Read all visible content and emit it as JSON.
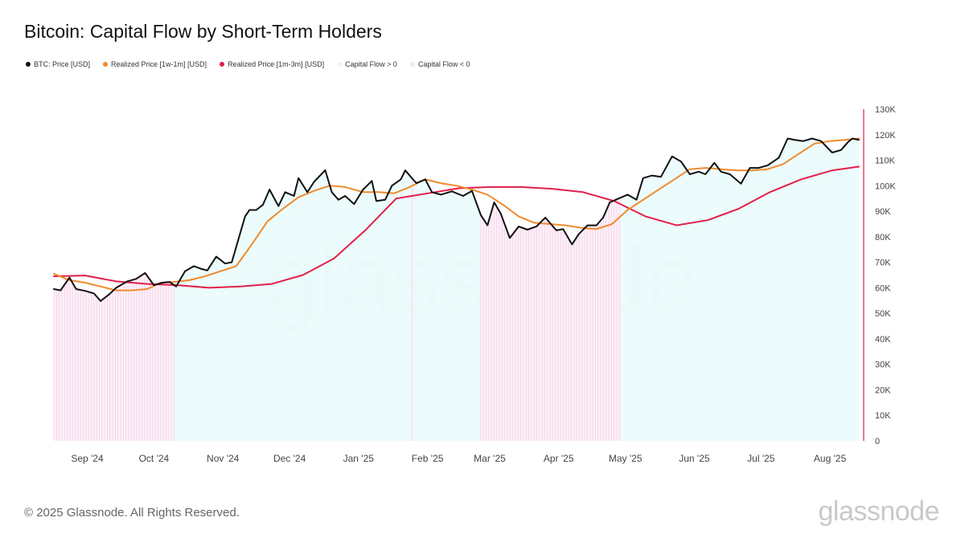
{
  "title": "Bitcoin: Capital Flow by Short-Term Holders",
  "legend": [
    {
      "label": "BTC: Price [USD]",
      "color": "#111111"
    },
    {
      "label": "Realized Price [1w-1m] [USD]",
      "color": "#f08a2c"
    },
    {
      "label": "Realized Price [1m-3m] [USD]",
      "color": "#e0204a"
    },
    {
      "label": "Capital Flow > 0",
      "color": "#eefbfb"
    },
    {
      "label": "Capital Flow < 0",
      "color": "#fbe9f5"
    }
  ],
  "footer": "© 2025 Glassnode. All Rights Reserved.",
  "logo": "glassnode",
  "watermark": "glassnode",
  "chart_data": {
    "type": "line",
    "title": "Bitcoin: Capital Flow by Short-Term Holders",
    "x_start": "2024-08-17",
    "x_end": "2025-08-14",
    "x_tick_labels": [
      "Sep '24",
      "Oct '24",
      "Nov '24",
      "Dec '24",
      "Jan '25",
      "Feb '25",
      "Mar '25",
      "Apr '25",
      "May '25",
      "Jun '25",
      "Jul '25",
      "Aug '25"
    ],
    "x_tick_dates": [
      "2024-09-01",
      "2024-10-01",
      "2024-11-01",
      "2024-12-01",
      "2025-01-01",
      "2025-02-01",
      "2025-03-01",
      "2025-04-01",
      "2025-05-01",
      "2025-06-01",
      "2025-07-01",
      "2025-08-01"
    ],
    "ylim": [
      0,
      130000
    ],
    "y_ticks": [
      0,
      10000,
      20000,
      30000,
      40000,
      50000,
      60000,
      70000,
      80000,
      90000,
      100000,
      110000,
      120000,
      130000
    ],
    "y_tick_labels": [
      "0",
      "10K",
      "20K",
      "30K",
      "40K",
      "50K",
      "60K",
      "70K",
      "80K",
      "90K",
      "100K",
      "110K",
      "120K",
      "130K"
    ],
    "y_axis_position": "right",
    "grid": false,
    "legend_position": "top-left",
    "series": [
      {
        "name": "BTC: Price [USD]",
        "color": "#111111",
        "points": [
          [
            "2024-08-17",
            59500
          ],
          [
            "2024-08-20",
            59000
          ],
          [
            "2024-08-24",
            64000
          ],
          [
            "2024-08-27",
            59500
          ],
          [
            "2024-08-31",
            58800
          ],
          [
            "2024-09-04",
            57800
          ],
          [
            "2024-09-07",
            54800
          ],
          [
            "2024-09-11",
            57500
          ],
          [
            "2024-09-14",
            60000
          ],
          [
            "2024-09-19",
            62500
          ],
          [
            "2024-09-23",
            63500
          ],
          [
            "2024-09-27",
            65800
          ],
          [
            "2024-10-01",
            61000
          ],
          [
            "2024-10-05",
            62000
          ],
          [
            "2024-10-08",
            62300
          ],
          [
            "2024-10-11",
            60500
          ],
          [
            "2024-10-15",
            66500
          ],
          [
            "2024-10-19",
            68500
          ],
          [
            "2024-10-22",
            67500
          ],
          [
            "2024-10-25",
            66800
          ],
          [
            "2024-10-29",
            72200
          ],
          [
            "2024-11-02",
            69500
          ],
          [
            "2024-11-05",
            70000
          ],
          [
            "2024-11-07",
            76000
          ],
          [
            "2024-11-11",
            88000
          ],
          [
            "2024-11-13",
            90500
          ],
          [
            "2024-11-16",
            90500
          ],
          [
            "2024-11-19",
            92500
          ],
          [
            "2024-11-22",
            98500
          ],
          [
            "2024-11-26",
            92000
          ],
          [
            "2024-11-29",
            97500
          ],
          [
            "2024-12-03",
            96000
          ],
          [
            "2024-12-05",
            103000
          ],
          [
            "2024-12-09",
            97500
          ],
          [
            "2024-12-12",
            101500
          ],
          [
            "2024-12-17",
            106100
          ],
          [
            "2024-12-20",
            97500
          ],
          [
            "2024-12-23",
            94500
          ],
          [
            "2024-12-26",
            96000
          ],
          [
            "2024-12-30",
            92800
          ],
          [
            "2025-01-03",
            98500
          ],
          [
            "2025-01-07",
            101900
          ],
          [
            "2025-01-09",
            94000
          ],
          [
            "2025-01-13",
            94500
          ],
          [
            "2025-01-16",
            100000
          ],
          [
            "2025-01-20",
            102500
          ],
          [
            "2025-01-22",
            106000
          ],
          [
            "2025-01-27",
            101000
          ],
          [
            "2025-01-31",
            102500
          ],
          [
            "2025-02-03",
            97500
          ],
          [
            "2025-02-07",
            96500
          ],
          [
            "2025-02-12",
            97800
          ],
          [
            "2025-02-17",
            96000
          ],
          [
            "2025-02-21",
            98000
          ],
          [
            "2025-02-25",
            88500
          ],
          [
            "2025-02-28",
            84500
          ],
          [
            "2025-03-03",
            93500
          ],
          [
            "2025-03-06",
            89000
          ],
          [
            "2025-03-10",
            79500
          ],
          [
            "2025-03-14",
            84000
          ],
          [
            "2025-03-18",
            82800
          ],
          [
            "2025-03-22",
            84000
          ],
          [
            "2025-03-26",
            87500
          ],
          [
            "2025-03-31",
            82500
          ],
          [
            "2025-04-03",
            83000
          ],
          [
            "2025-04-07",
            77000
          ],
          [
            "2025-04-10",
            81000
          ],
          [
            "2025-04-14",
            84500
          ],
          [
            "2025-04-18",
            84500
          ],
          [
            "2025-04-21",
            87500
          ],
          [
            "2025-04-24",
            93500
          ],
          [
            "2025-04-28",
            95000
          ],
          [
            "2025-05-02",
            96500
          ],
          [
            "2025-05-06",
            94500
          ],
          [
            "2025-05-09",
            103000
          ],
          [
            "2025-05-13",
            104000
          ],
          [
            "2025-05-17",
            103500
          ],
          [
            "2025-05-22",
            111500
          ],
          [
            "2025-05-26",
            109500
          ],
          [
            "2025-05-30",
            104500
          ],
          [
            "2025-06-03",
            105500
          ],
          [
            "2025-06-06",
            104500
          ],
          [
            "2025-06-10",
            109000
          ],
          [
            "2025-06-13",
            105500
          ],
          [
            "2025-06-17",
            104500
          ],
          [
            "2025-06-22",
            100800
          ],
          [
            "2025-06-26",
            107000
          ],
          [
            "2025-06-30",
            107000
          ],
          [
            "2025-07-04",
            108000
          ],
          [
            "2025-07-09",
            111000
          ],
          [
            "2025-07-13",
            118500
          ],
          [
            "2025-07-16",
            118000
          ],
          [
            "2025-07-20",
            117500
          ],
          [
            "2025-07-24",
            118500
          ],
          [
            "2025-07-28",
            117500
          ],
          [
            "2025-08-02",
            113000
          ],
          [
            "2025-08-06",
            114000
          ],
          [
            "2025-08-09",
            117000
          ],
          [
            "2025-08-11",
            118500
          ],
          [
            "2025-08-14",
            118000
          ]
        ]
      },
      {
        "name": "Realized Price [1w-1m] [USD]",
        "color": "#f08a2c",
        "points": [
          [
            "2024-08-17",
            65500
          ],
          [
            "2024-08-24",
            63000
          ],
          [
            "2024-08-31",
            62000
          ],
          [
            "2024-09-07",
            60500
          ],
          [
            "2024-09-14",
            59000
          ],
          [
            "2024-09-21",
            59000
          ],
          [
            "2024-09-28",
            59500
          ],
          [
            "2024-10-04",
            62000
          ],
          [
            "2024-10-10",
            62300
          ],
          [
            "2024-10-17",
            63000
          ],
          [
            "2024-10-24",
            64500
          ],
          [
            "2024-10-31",
            66500
          ],
          [
            "2024-11-07",
            68500
          ],
          [
            "2024-11-14",
            77000
          ],
          [
            "2024-11-21",
            86000
          ],
          [
            "2024-11-28",
            91000
          ],
          [
            "2024-12-05",
            95500
          ],
          [
            "2024-12-12",
            98000
          ],
          [
            "2024-12-19",
            100000
          ],
          [
            "2024-12-26",
            99500
          ],
          [
            "2025-01-03",
            97500
          ],
          [
            "2025-01-10",
            97500
          ],
          [
            "2025-01-17",
            97000
          ],
          [
            "2025-01-24",
            99500
          ],
          [
            "2025-01-31",
            102500
          ],
          [
            "2025-02-07",
            101000
          ],
          [
            "2025-02-14",
            100000
          ],
          [
            "2025-02-21",
            98500
          ],
          [
            "2025-02-28",
            96500
          ],
          [
            "2025-03-07",
            92500
          ],
          [
            "2025-03-14",
            88000
          ],
          [
            "2025-03-21",
            85500
          ],
          [
            "2025-03-28",
            85000
          ],
          [
            "2025-04-04",
            84500
          ],
          [
            "2025-04-11",
            83500
          ],
          [
            "2025-04-18",
            83000
          ],
          [
            "2025-04-25",
            85000
          ],
          [
            "2025-05-02",
            90500
          ],
          [
            "2025-05-09",
            94500
          ],
          [
            "2025-05-16",
            98500
          ],
          [
            "2025-05-23",
            102500
          ],
          [
            "2025-05-30",
            106500
          ],
          [
            "2025-06-06",
            107000
          ],
          [
            "2025-06-13",
            106500
          ],
          [
            "2025-06-20",
            106000
          ],
          [
            "2025-06-27",
            106000
          ],
          [
            "2025-07-04",
            106500
          ],
          [
            "2025-07-11",
            108500
          ],
          [
            "2025-07-18",
            112500
          ],
          [
            "2025-07-25",
            116500
          ],
          [
            "2025-08-01",
            117500
          ],
          [
            "2025-08-08",
            118000
          ],
          [
            "2025-08-14",
            118500
          ]
        ]
      },
      {
        "name": "Realized Price [1m-3m] [USD]",
        "color": "#e0204a",
        "points": [
          [
            "2024-08-17",
            64500
          ],
          [
            "2024-08-31",
            64800
          ],
          [
            "2024-09-14",
            62500
          ],
          [
            "2024-09-28",
            61500
          ],
          [
            "2024-10-12",
            61000
          ],
          [
            "2024-10-26",
            60000
          ],
          [
            "2024-11-09",
            60500
          ],
          [
            "2024-11-23",
            61500
          ],
          [
            "2024-12-07",
            65000
          ],
          [
            "2024-12-21",
            71500
          ],
          [
            "2025-01-04",
            82500
          ],
          [
            "2025-01-18",
            95000
          ],
          [
            "2025-02-01",
            97000
          ],
          [
            "2025-02-15",
            99000
          ],
          [
            "2025-03-01",
            99500
          ],
          [
            "2025-03-15",
            99500
          ],
          [
            "2025-03-29",
            98800
          ],
          [
            "2025-04-12",
            97500
          ],
          [
            "2025-04-26",
            94000
          ],
          [
            "2025-05-10",
            88000
          ],
          [
            "2025-05-24",
            84500
          ],
          [
            "2025-06-07",
            86500
          ],
          [
            "2025-06-21",
            91000
          ],
          [
            "2025-07-05",
            97500
          ],
          [
            "2025-07-19",
            102500
          ],
          [
            "2025-08-02",
            106000
          ],
          [
            "2025-08-14",
            107500
          ]
        ]
      }
    ],
    "capital_flow_negative_ranges": [
      [
        "2024-08-17",
        "2024-10-10"
      ],
      [
        "2025-01-25",
        "2025-01-26"
      ],
      [
        "2025-02-25",
        "2025-04-29"
      ]
    ]
  }
}
